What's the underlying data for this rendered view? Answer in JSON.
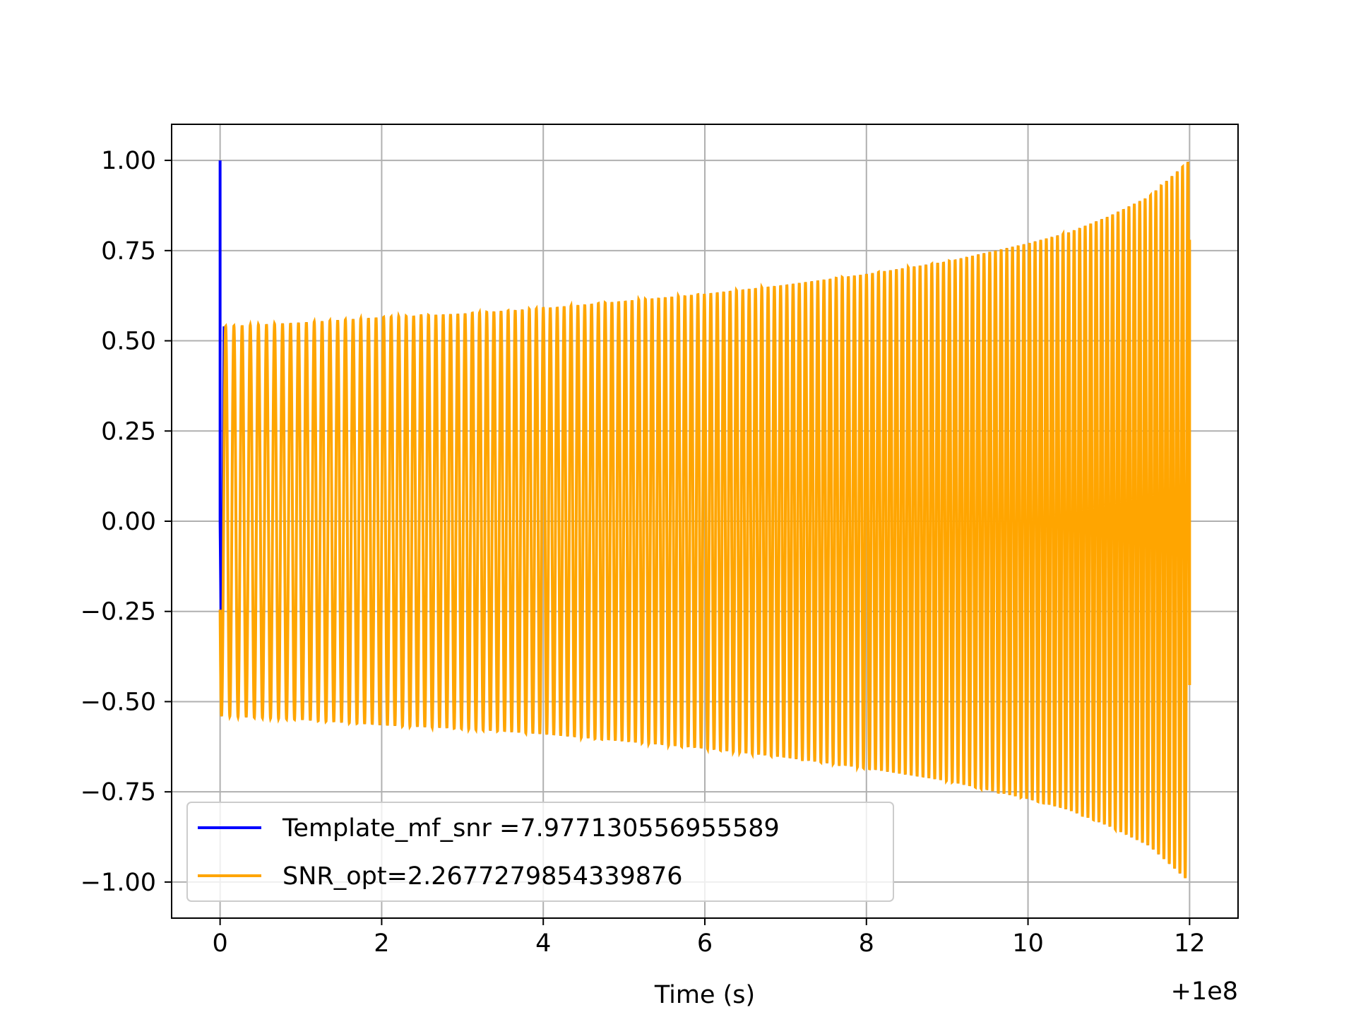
{
  "chart_data": {
    "type": "line",
    "title": "",
    "xlabel": "Time (s)",
    "ylabel": "",
    "x_offset_label": "+1e8",
    "xlim": [
      -0.6,
      12.6
    ],
    "ylim": [
      -1.1,
      1.1
    ],
    "xticks": [
      0,
      2,
      4,
      6,
      8,
      10,
      12
    ],
    "xtick_labels": [
      "0",
      "2",
      "4",
      "6",
      "8",
      "10",
      "12"
    ],
    "yticks": [
      -1.0,
      -0.75,
      -0.5,
      -0.25,
      0.0,
      0.25,
      0.5,
      0.75,
      1.0
    ],
    "ytick_labels": [
      "−1.00",
      "−0.75",
      "−0.50",
      "−0.25",
      "0.00",
      "0.25",
      "0.50",
      "0.75",
      "1.00"
    ],
    "grid": true,
    "legend_position": "lower-left",
    "series": [
      {
        "name": "Template_mf_snr =7.977130556955589",
        "color": "#0000ff",
        "description_points": {
          "x": [
            0.0,
            0.0,
            0.02,
            0.05
          ],
          "y": [
            1.0,
            0.0,
            -0.48,
            0.54
          ]
        }
      },
      {
        "name": "SNR_opt=2.2677279854339876",
        "color": "#ffa500",
        "envelope_x": [
          0.05,
          1,
          2,
          3,
          4,
          5,
          6,
          7,
          8,
          9,
          10,
          10.5,
          11,
          11.5,
          12.0
        ],
        "envelope_y": [
          0.54,
          0.55,
          0.565,
          0.575,
          0.59,
          0.61,
          0.63,
          0.655,
          0.685,
          0.72,
          0.77,
          0.8,
          0.845,
          0.9,
          1.0
        ],
        "cycles": 150,
        "x_start": 0.0,
        "x_end": 12.0
      }
    ]
  }
}
